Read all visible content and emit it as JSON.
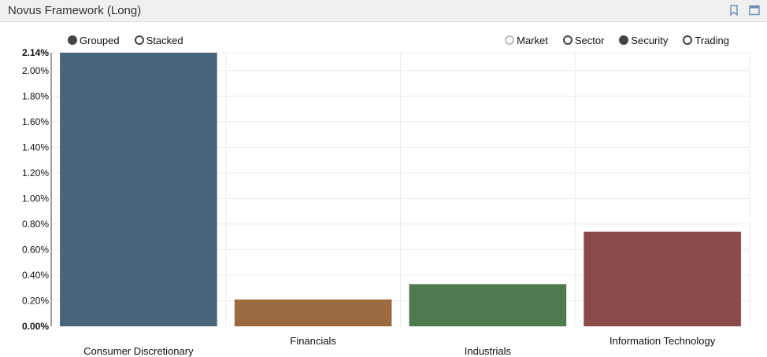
{
  "window": {
    "title": "Novus Framework (Long)",
    "icons": [
      "bookmark-icon",
      "maximize-icon"
    ]
  },
  "mode_toggle": {
    "options": [
      {
        "label": "Grouped",
        "state": "selected"
      },
      {
        "label": "Stacked",
        "state": "unselected"
      }
    ]
  },
  "level_toggle": {
    "options": [
      {
        "label": "Market",
        "state": "disabled"
      },
      {
        "label": "Sector",
        "state": "unselected"
      },
      {
        "label": "Security",
        "state": "selected"
      },
      {
        "label": "Trading",
        "state": "unselected"
      }
    ]
  },
  "chart_data": {
    "type": "bar",
    "categories": [
      "Consumer Discretionary",
      "Financials",
      "Industrials",
      "Information Technology"
    ],
    "values": [
      2.14,
      0.21,
      0.33,
      0.74
    ],
    "colors": [
      "#4a6479",
      "#9b6b3f",
      "#4d7a4e",
      "#8b4a4a"
    ],
    "ylim": [
      0,
      2.14
    ],
    "yticks": [
      "0.00%",
      "0.20%",
      "0.40%",
      "0.60%",
      "0.80%",
      "1.00%",
      "1.20%",
      "1.40%",
      "1.60%",
      "1.80%",
      "2.00%",
      "2.14%"
    ],
    "ytick_values": [
      0,
      0.2,
      0.4,
      0.6,
      0.8,
      1.0,
      1.2,
      1.4,
      1.6,
      1.8,
      2.0,
      2.14
    ],
    "bold_ticks": [
      "0.00%",
      "2.14%"
    ],
    "grid": true
  }
}
